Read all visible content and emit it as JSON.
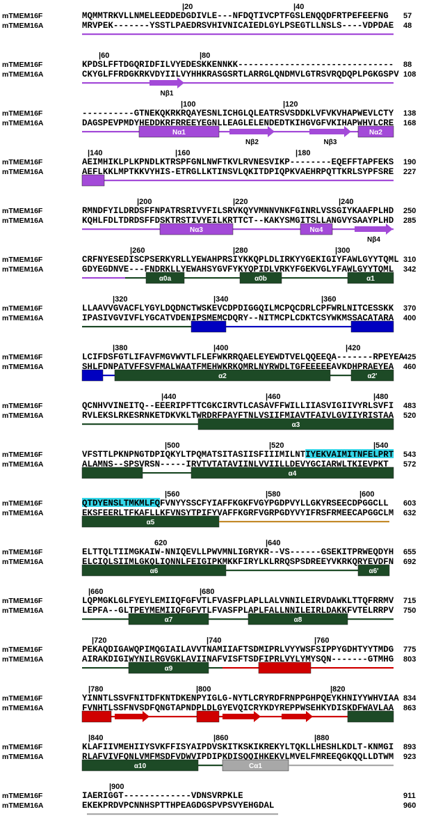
{
  "blocks": [
    {
      "ruler": [
        "|20",
        "|40"
      ],
      "rows": [
        {
          "name": "mTMEM16F",
          "seq": "MQMMTRKVLLNMELEEDDEDGDIVLE---NFDQTIVCPTFGSLENQQDFRTPEFEEFNG",
          "end": 57
        },
        {
          "name": "mTMEM16A",
          "seq": "MRVPEK-------YSSTLPAEDRSVHIVNICAIEDLGYLPSEGTLLNSLS----VDPDAE",
          "end": 48
        }
      ],
      "labels": []
    },
    {
      "ruler": [
        "|60",
        "|80"
      ],
      "rows": [
        {
          "name": "mTMEM16F",
          "seq": "KPDSLFFTDGQRIDFILVYEDESKKENNKK------------------------------",
          "end": 88
        },
        {
          "name": "mTMEM16A",
          "seq": "CKYGLFFRDGKRKVDYIILVYHHKRASGSRTLARRGLQNDMVLGTRSVRQDQPLPGKGSPV",
          "end": 108
        }
      ],
      "labels": [
        "Nβ1"
      ]
    },
    {
      "ruler": [
        "|100",
        "|120"
      ],
      "rows": [
        {
          "name": "mTMEM16F",
          "seq": "----------GTNEKQKRKRQAYESNLICHGLQLEATRSVSDDKLVFVKVHAPWEVLCTY",
          "end": 138
        },
        {
          "name": "mTMEM16A",
          "seq": "DAGSPEVPMDYHEDDKRFRREEYEGNLLEAGLELENDEDTKIHGVGFVKIHAPWHVLCRE",
          "end": 168
        }
      ],
      "labels": [
        "Nα1",
        "Nβ2",
        "Nβ3",
        "Nα2"
      ]
    },
    {
      "ruler": [
        "|140",
        "|160",
        "|180"
      ],
      "rows": [
        {
          "name": "mTMEM16F",
          "seq": "AEIMHIKLPLKPNDLKTRSPFGNLNWFTKVLRVNESVIKP--------EQEFFTAPFEKS",
          "end": 190
        },
        {
          "name": "mTMEM16A",
          "seq": "AEFLKKLMPTKKVYHIS-ETRGLLKTINSVLQKITDPIQPKVAEHRPQTTKRLSYPFSRE",
          "end": 227
        }
      ],
      "labels": []
    },
    {
      "ruler": [
        "|200",
        "|220",
        "|240"
      ],
      "rows": [
        {
          "name": "mTMEM16F",
          "seq": "RMNDFYILDRDSFFNPATRSRIVYFILSRVKQYVMNNVNKFGINRLVSSGIYKAAFPLHD",
          "end": 250
        },
        {
          "name": "mTMEM16A",
          "seq": "KQHLFDLTDRDSFFDSKTRSTIVYEILKRTTCT--KAKYSMGITSLLANGVYSAAYPLHD",
          "end": 285
        }
      ],
      "labels": [
        "Nα3",
        "Nα4",
        "Nβ4"
      ]
    },
    {
      "ruler": [
        "|260",
        "|280",
        "|300"
      ],
      "rows": [
        {
          "name": "mTMEM16F",
          "seq": "CRFNYESEDISCPSERKYRLLYEWAHPRSIYKKQPLDLIRKYYGEKIGIYFAWLGYYTQML",
          "end": 310
        },
        {
          "name": "mTMEM16A",
          "seq": "GDYEGDNVE---FNDRKLLYEWAHSYGVFYKYQPIDLVRKYFGEKVGLYFAWLGYYTQML",
          "end": 342
        }
      ],
      "labels": [
        "α0a",
        "α0b",
        "α1"
      ]
    },
    {
      "ruler": [
        "|320",
        "|340",
        "|360"
      ],
      "rows": [
        {
          "name": "mTMEM16F",
          "seq": "LLAAVVGVACFLYGYLDQDNCTWSKEVCDPDIGGQILMCPQCDRLCPFWRLNITCESSKK",
          "end": 370
        },
        {
          "name": "mTMEM16A",
          "seq": "IPASIVGVIVFLYGCATVDENIPSMEMCDQRY--NITMCPLCDKTCSYWKMSSACATARA",
          "end": 400
        }
      ],
      "labels": []
    },
    {
      "ruler": [
        "|380",
        "|400",
        "|420"
      ],
      "rows": [
        {
          "name": "mTMEM16F",
          "seq": "LCIFDSFGTLIFAVFMGVWVTLFLEFWKRRQAELEYEWDTVELQQEEQA-------RPEYEA",
          "end": 425
        },
        {
          "name": "mTMEM16A",
          "seq": "SHLFDNPATVFFSVFMALWAATFMEHWKRKQMRLNYRWDLTGFEEEEEAVKDHPRAEYEA",
          "end": 460
        }
      ],
      "labels": [
        "α2",
        "α2'"
      ]
    },
    {
      "ruler": [
        "|440",
        "|460",
        "|480"
      ],
      "rows": [
        {
          "name": "mTMEM16F",
          "seq": "QCNHVVINEITQ--EEERIPFTTCGKCIRVTLCASAVFFWILLIIASVIGIIVYRLSVFI",
          "end": 483
        },
        {
          "name": "mTMEM16A",
          "seq": "RVLEKSLRKESRNKETDKVKLTWRDRFPAYFTNLVSIIFMIAVTFAIVLGVIIYRISTAA",
          "end": 520
        }
      ],
      "labels": [
        "α3"
      ]
    },
    {
      "ruler": [
        "|500",
        "|520",
        "|540"
      ],
      "rows": [
        {
          "name": "mTMEM16F",
          "seq": "VFSTTLPKNPNGTDPIQKYLTPQMATSITASIISFIIIMILNTIYEKVAIMITNFELPRT",
          "end": 543
        },
        {
          "name": "mTMEM16A",
          "seq": "ALAMNS--SPSVRSN-----IRVTVTATAVIINLVVIILLDEVYGCIARWLTKIEVPKT",
          "end": 572
        }
      ],
      "labels": [
        "α4"
      ]
    },
    {
      "ruler": [
        "|560",
        "|580",
        "|600"
      ],
      "rows": [
        {
          "name": "mTMEM16F",
          "seq": "QTDYENSLTMKMLFQFVNYYSSCFYIAFFKGKFVGYPGDPVYLLGKYRSEECDPGGCLL",
          "end": 603
        },
        {
          "name": "mTMEM16A",
          "seq": "EKSFEERLTFKAFLLKFVNSYTPIFYVAFFKGRFVGRPGDYVYIFRSFRMEECAPGGCLM",
          "end": 632
        }
      ],
      "labels": [
        "α5"
      ]
    },
    {
      "ruler": [
        "620",
        "|640"
      ],
      "rows": [
        {
          "name": "mTMEM16F",
          "seq": "ELTTQLTIIMGKAIW-NNIQEVLLPWVMNLIGRYKR--VS------GSEKITPRWEQDYH",
          "end": 655
        },
        {
          "name": "mTMEM16A",
          "seq": "ELCIQLSIIMLGKQLIQNNLFEIGIPKMKKFIRYLKLRRQSPSDREEYVKRKQRYEVDFN",
          "end": 692
        }
      ],
      "labels": [
        "α6",
        "α6'"
      ]
    },
    {
      "ruler": [
        "|660",
        "|680"
      ],
      "rows": [
        {
          "name": "mTMEM16F",
          "seq": "LQPMGKLGLFYEYLEMIIQFGFVTLFVASFPLAPLLALVNNILEIRVDAWKLTTQFRRMV",
          "end": 715
        },
        {
          "name": "mTMEM16A",
          "seq": "LEPFA--GLTPEYMEMIIQFGFVTLFVASFPLAPLFALLNNILEIRLDAKKFVTELRRPV",
          "end": 750
        }
      ],
      "labels": [
        "α7",
        "α8"
      ]
    },
    {
      "ruler": [
        "|720",
        "|740",
        "|760"
      ],
      "rows": [
        {
          "name": "mTMEM16F",
          "seq": "PEKAQDIGAWQPIMQGIAILAVVTNAMIIAFTSDMIPRLVYYWSFSIPPYGDHTYYTMDG",
          "end": 775
        },
        {
          "name": "mTMEM16A",
          "seq": "AIRAKDIGIWYNILRGVGKLAVIINAFVISFTSDFIPRLVYLYMYSQN-------GTMHG",
          "end": 803
        }
      ],
      "labels": [
        "α9"
      ]
    },
    {
      "ruler": [
        "|780",
        "|800",
        "|820"
      ],
      "rows": [
        {
          "name": "mTMEM16F",
          "seq": "YINNTLSSVFNITDFKNTDKENPYIGLG-NYTLCRYRDFRNPPGHPQEYKHNIYYWHVIAA",
          "end": 834
        },
        {
          "name": "mTMEM16A",
          "seq": "FVNHTLSSFNVSDFQNGTAPNDPLDLGYEVQICRYKDYREPPWSEHKYDISKDFWAVLAA",
          "end": 863
        }
      ],
      "labels": []
    },
    {
      "ruler": [
        "|840",
        "|860",
        "|880"
      ],
      "rows": [
        {
          "name": "mTMEM16F",
          "seq": "KLAFIIVMEHIIYSVKFFISYAIPDVSKITKSKIKREKYLTQKLLHESHLKDLT-KNMGI",
          "end": 893
        },
        {
          "name": "mTMEM16A",
          "seq": "RLAFVIVFQNLVMFMSDFVDWVIPDIPKDISQQIHKEKVLMVELFMREEQGKQQLLDTWM",
          "end": 923
        }
      ],
      "labels": [
        "α10",
        "Cα1"
      ]
    },
    {
      "ruler": [
        "|900"
      ],
      "rows": [
        {
          "name": "mTMEM16F",
          "seq": "IAERIGGT-------------VDNSVRPKLE",
          "end": 911
        },
        {
          "name": "mTMEM16A",
          "seq": "EKEKPRDVPCNNHSPTTHPEAGDGSPVPSVYEHGDAL",
          "end": 960
        }
      ],
      "labels": []
    }
  ]
}
